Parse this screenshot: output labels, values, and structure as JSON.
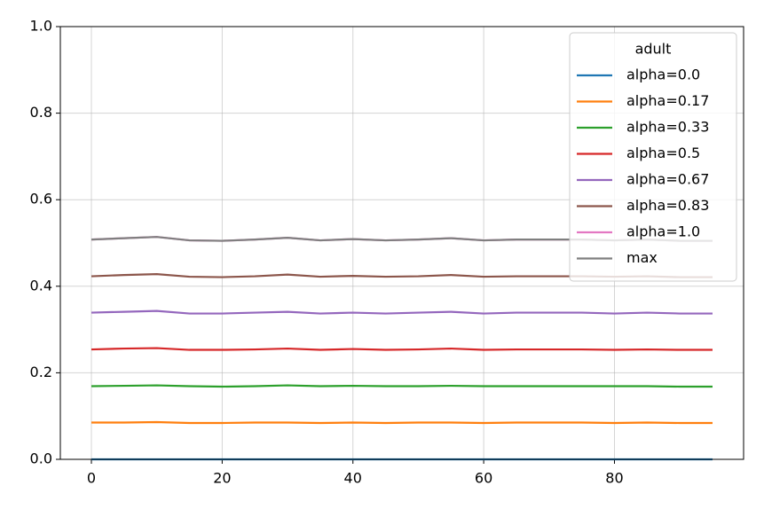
{
  "chart_data": {
    "type": "line",
    "x": [
      0,
      5,
      10,
      15,
      20,
      25,
      30,
      35,
      40,
      45,
      50,
      55,
      60,
      65,
      70,
      75,
      80,
      85,
      90,
      95
    ],
    "xlim": [
      -4.75,
      99.75
    ],
    "xticks": [
      0,
      20,
      40,
      60,
      80
    ],
    "ylim": [
      0,
      1
    ],
    "yticks": [
      {
        "value": 0,
        "label": "0.0"
      },
      0.2,
      0.4,
      0.6,
      0.8,
      {
        "value": 1,
        "label": "1.0"
      }
    ],
    "grid": true,
    "legend_title": "adult",
    "legend_position": "upper-right",
    "series": [
      {
        "name": "alpha=0.0",
        "color": "#1f77b4",
        "values": [
          0,
          0,
          0,
          0,
          0,
          0,
          0,
          0,
          0,
          0,
          0,
          0,
          0,
          0,
          0,
          0,
          0,
          0,
          0,
          0
        ]
      },
      {
        "name": "alpha=0.17",
        "color": "#ff7f0e",
        "values": [
          0.085,
          0.085,
          0.086,
          0.084,
          0.084,
          0.085,
          0.085,
          0.084,
          0.085,
          0.084,
          0.085,
          0.085,
          0.084,
          0.085,
          0.085,
          0.085,
          0.084,
          0.085,
          0.084,
          0.084
        ]
      },
      {
        "name": "alpha=0.33",
        "color": "#2ca02c",
        "values": [
          0.169,
          0.17,
          0.171,
          0.169,
          0.168,
          0.169,
          0.171,
          0.169,
          0.17,
          0.169,
          0.169,
          0.17,
          0.169,
          0.169,
          0.169,
          0.169,
          0.169,
          0.169,
          0.168,
          0.168
        ]
      },
      {
        "name": "alpha=0.5",
        "color": "#d62728",
        "values": [
          0.254,
          0.256,
          0.257,
          0.253,
          0.253,
          0.254,
          0.256,
          0.253,
          0.255,
          0.253,
          0.254,
          0.256,
          0.253,
          0.254,
          0.254,
          0.254,
          0.253,
          0.254,
          0.253,
          0.253
        ]
      },
      {
        "name": "alpha=0.67",
        "color": "#9467bd",
        "values": [
          0.339,
          0.341,
          0.343,
          0.337,
          0.337,
          0.339,
          0.341,
          0.337,
          0.339,
          0.337,
          0.339,
          0.341,
          0.337,
          0.339,
          0.339,
          0.339,
          0.337,
          0.339,
          0.337,
          0.337
        ]
      },
      {
        "name": "alpha=0.83",
        "color": "#8c564b",
        "values": [
          0.423,
          0.426,
          0.428,
          0.422,
          0.421,
          0.423,
          0.427,
          0.422,
          0.424,
          0.422,
          0.423,
          0.426,
          0.422,
          0.423,
          0.423,
          0.423,
          0.422,
          0.423,
          0.421,
          0.421
        ]
      },
      {
        "name": "alpha=1.0",
        "color": "#e377c2",
        "values": [
          0.508,
          0.511,
          0.514,
          0.506,
          0.505,
          0.508,
          0.512,
          0.506,
          0.509,
          0.506,
          0.508,
          0.511,
          0.506,
          0.508,
          0.508,
          0.508,
          0.506,
          0.508,
          0.505,
          0.505
        ]
      },
      {
        "name": "max",
        "color": "#7f7f7f",
        "values": [
          0.508,
          0.511,
          0.514,
          0.506,
          0.505,
          0.508,
          0.512,
          0.506,
          0.509,
          0.506,
          0.508,
          0.511,
          0.506,
          0.508,
          0.508,
          0.508,
          0.506,
          0.508,
          0.505,
          0.505
        ]
      }
    ]
  }
}
